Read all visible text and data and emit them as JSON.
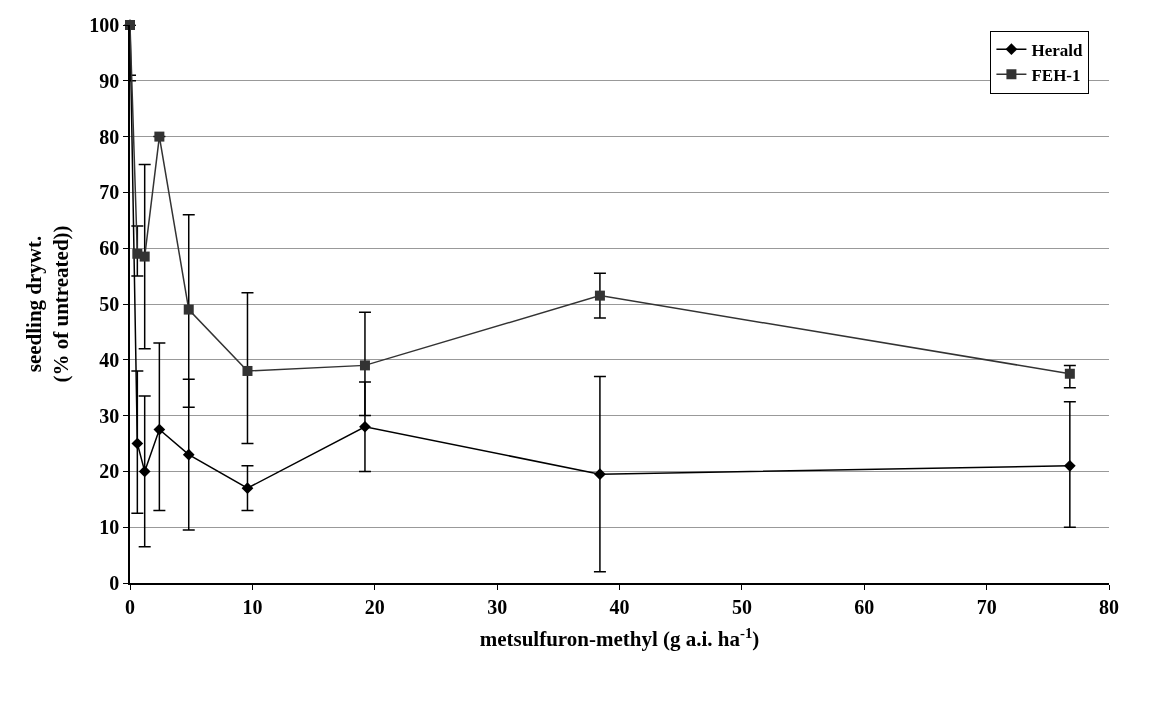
{
  "chart_data": {
    "type": "line",
    "xlabel": "metsulfuron-methyl (g a.i. ha$^{-1}$)",
    "ylabel": "seedling drywt.\n(% of untreated))",
    "x": [
      0,
      0.6,
      1.2,
      2.4,
      4.8,
      9.6,
      19.2,
      38.4,
      76.8
    ],
    "series": [
      {
        "name": "Herald",
        "color": "#000000",
        "marker": "diamond",
        "values": [
          100,
          25,
          20,
          27.5,
          23,
          17,
          28,
          19.5,
          21
        ],
        "errors": [
          [
            90,
            100
          ],
          [
            12.5,
            38
          ],
          [
            6.5,
            33.5
          ],
          [
            13,
            43
          ],
          [
            9.5,
            36.5
          ],
          [
            13,
            21
          ],
          [
            20,
            36
          ],
          [
            2,
            37
          ],
          [
            10,
            32.5
          ]
        ]
      },
      {
        "name": "FEH-1",
        "color": "#333333",
        "marker": "square",
        "values": [
          100,
          59,
          58.5,
          80,
          49,
          38,
          39,
          51.5,
          37.5
        ],
        "errors": [
          [
            91,
            100
          ],
          [
            55,
            64
          ],
          [
            42,
            75
          ],
          [
            80,
            80
          ],
          [
            31.5,
            66
          ],
          [
            25,
            52
          ],
          [
            30,
            48.5
          ],
          [
            47.5,
            55.5
          ],
          [
            35,
            39
          ]
        ]
      }
    ],
    "xlim": [
      0,
      80
    ],
    "xticks": [
      0,
      10,
      20,
      30,
      40,
      50,
      60,
      70,
      80
    ],
    "ylim": [
      0,
      100
    ],
    "yticks": [
      0,
      10,
      20,
      30,
      40,
      50,
      60,
      70,
      80,
      90,
      100
    ],
    "grid": "y",
    "legend": "top right"
  }
}
